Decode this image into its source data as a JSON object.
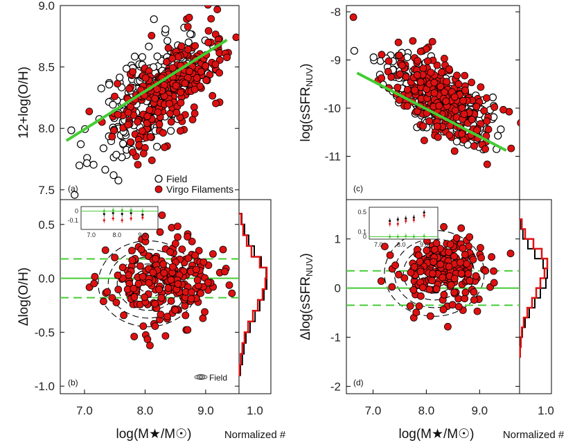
{
  "chart_data": [
    {
      "id": "a",
      "type": "scatter",
      "panel_label": "(a)",
      "ylabel": "12+log(O/H)",
      "xlim": [
        6.6,
        9.55
      ],
      "ylim": [
        7.42,
        9.0
      ],
      "yticks": [
        7.5,
        8.0,
        8.5,
        9.0
      ],
      "ytick_labels": [
        "7.5",
        "8.0",
        "8.5",
        "9.0"
      ],
      "fit_line": {
        "x": [
          6.7,
          9.35
        ],
        "y": [
          7.9,
          8.72
        ],
        "color": "#44cc33"
      },
      "legend": [
        {
          "label": "Field",
          "marker": "open-circle"
        },
        {
          "label": "Virgo Filaments",
          "marker": "red-circle"
        }
      ],
      "series": [
        {
          "name": "Field",
          "n_points": 220,
          "x_mean": 8.05,
          "x_sd": 0.45,
          "y_mean": 8.28,
          "y_sd": 0.28
        },
        {
          "name": "Virgo Filaments",
          "n_points": 300,
          "x_mean": 8.35,
          "x_sd": 0.45,
          "y_mean": 8.32,
          "y_sd": 0.25
        }
      ]
    },
    {
      "id": "b",
      "type": "scatter",
      "panel_label": "(b)",
      "xlabel": "log(M★/M☉)",
      "ylabel": "Δlog(O/H)",
      "xlim": [
        6.6,
        9.55
      ],
      "ylim": [
        -1.07,
        0.73
      ],
      "xticks": [
        7.0,
        8.0,
        9.0
      ],
      "xtick_labels": [
        "7.0",
        "8.0",
        "9.0"
      ],
      "yticks": [
        -1.0,
        -0.5,
        0.0,
        0.5
      ],
      "ytick_labels": [
        "-1.0",
        "-0.5",
        "0.0",
        "0.5"
      ],
      "hlines": [
        {
          "y": 0.0,
          "style": "solid"
        },
        {
          "y": 0.18,
          "style": "dashed"
        },
        {
          "y": -0.18,
          "style": "dashed"
        }
      ],
      "contour_legend": "Field",
      "series": [
        {
          "name": "Virgo Filaments",
          "n_points": 230,
          "x_mean": 8.3,
          "x_sd": 0.45,
          "y_mean": -0.03,
          "y_sd": 0.2
        }
      ],
      "inset": {
        "xticks": [
          7.0,
          8.0,
          9.0
        ],
        "xtick_labels": [
          "7.0",
          "8.0",
          "9.0"
        ],
        "yticks": [
          0,
          -0.1
        ],
        "ytick_labels": [
          "0",
          "-0.1"
        ],
        "ylim": [
          -0.2,
          0.05
        ],
        "bins_x": [
          7.5,
          7.85,
          8.2,
          8.55,
          9.0
        ],
        "field": [
          -0.03,
          -0.02,
          -0.03,
          -0.02,
          -0.04
        ],
        "virgo": [
          -0.1,
          -0.08,
          -0.1,
          -0.08,
          -0.07
        ],
        "green": [
          0.0,
          0.01,
          0.01,
          0.01,
          0.0
        ]
      }
    },
    {
      "id": "b_hist",
      "type": "histogram",
      "xlabel": "Normalized #",
      "xtick_labels": [
        "1.0"
      ],
      "orientation": "horizontal",
      "ylim": [
        -1.07,
        0.73
      ],
      "bin_edges": [
        -0.9,
        -0.8,
        -0.7,
        -0.6,
        -0.5,
        -0.4,
        -0.3,
        -0.2,
        -0.1,
        0.0,
        0.1,
        0.2,
        0.3,
        0.4,
        0.5,
        0.6
      ],
      "series": [
        {
          "name": "Field",
          "color": "#000000",
          "values": [
            0.05,
            0.12,
            0.18,
            0.25,
            0.4,
            0.58,
            0.75,
            0.9,
            1.0,
            0.98,
            0.8,
            0.55,
            0.35,
            0.2,
            0.1
          ]
        },
        {
          "name": "Virgo Filaments",
          "color": "#dd1111",
          "values": [
            0.02,
            0.06,
            0.12,
            0.2,
            0.33,
            0.5,
            0.68,
            0.85,
            0.95,
            1.0,
            0.75,
            0.45,
            0.28,
            0.15,
            0.08
          ]
        }
      ]
    },
    {
      "id": "c",
      "type": "scatter",
      "panel_label": "(c)",
      "ylabel": "log(sSFR",
      "ylabel_sub": "NUV",
      "ylabel_end": ")",
      "xlim": [
        6.5,
        9.75
      ],
      "ylim": [
        -11.9,
        -7.87
      ],
      "yticks": [
        -11,
        -10,
        -9,
        -8
      ],
      "ytick_labels": [
        "-11",
        "-10",
        "-9",
        "-8"
      ],
      "fit_line": {
        "x": [
          6.7,
          9.5
        ],
        "y": [
          -9.27,
          -10.88
        ],
        "color": "#44cc33"
      },
      "series": [
        {
          "name": "Field",
          "n_points": 230,
          "x_mean": 8.2,
          "x_sd": 0.5,
          "y_mean": -9.8,
          "y_sd": 0.45
        },
        {
          "name": "Virgo Filaments",
          "n_points": 300,
          "x_mean": 8.3,
          "x_sd": 0.5,
          "y_mean": -9.85,
          "y_sd": 0.5
        }
      ]
    },
    {
      "id": "d",
      "type": "scatter",
      "panel_label": "(d)",
      "xlabel": "log(M★/M☉)",
      "ylabel": "Δlog(sSFR",
      "ylabel_sub": "NUV",
      "ylabel_end": ")",
      "xlim": [
        6.5,
        9.75
      ],
      "ylim": [
        -2.15,
        1.8
      ],
      "xticks": [
        7.0,
        8.0,
        9.0
      ],
      "xtick_labels": [
        "7.0",
        "8.0",
        "9.0"
      ],
      "yticks": [
        -2,
        -1,
        0,
        1
      ],
      "ytick_labels": [
        "-2",
        "-1",
        "0",
        "1"
      ],
      "hlines": [
        {
          "y": 0.0,
          "style": "solid"
        },
        {
          "y": 0.35,
          "style": "dashed"
        },
        {
          "y": -0.35,
          "style": "dashed"
        }
      ],
      "series": [
        {
          "name": "Virgo Filaments",
          "n_points": 210,
          "x_mean": 8.35,
          "x_sd": 0.45,
          "y_mean": 0.35,
          "y_sd": 0.4
        }
      ],
      "inset": {
        "xticks": [
          7.0,
          8.0,
          9.0
        ],
        "xtick_labels": [
          "7.0",
          "8.0",
          "9.0"
        ],
        "yticks": [
          0,
          0.1,
          0.5
        ],
        "ytick_labels": [
          "0",
          "0.1",
          "0.5"
        ],
        "ylim": [
          -0.05,
          0.6
        ],
        "bins_x": [
          7.5,
          7.85,
          8.2,
          8.55,
          9.0
        ],
        "field": [
          0.32,
          0.35,
          0.37,
          0.39,
          0.49
        ],
        "virgo": [
          0.26,
          0.26,
          0.32,
          0.34,
          0.43
        ],
        "green": [
          0.0,
          0.0,
          0.01,
          0.0,
          0.01
        ]
      }
    },
    {
      "id": "d_hist",
      "type": "histogram",
      "xlabel": "Normalized #",
      "xtick_labels": [
        "1.0"
      ],
      "orientation": "horizontal",
      "ylim": [
        -2.15,
        1.8
      ],
      "bin_edges": [
        -1.4,
        -1.2,
        -1.0,
        -0.8,
        -0.6,
        -0.4,
        -0.2,
        0.0,
        0.2,
        0.4,
        0.6,
        0.8,
        1.0,
        1.2,
        1.4
      ],
      "series": [
        {
          "name": "Field",
          "color": "#000000",
          "values": [
            0.02,
            0.05,
            0.1,
            0.2,
            0.35,
            0.55,
            0.75,
            0.95,
            1.0,
            0.85,
            0.55,
            0.3,
            0.12,
            0.05
          ]
        },
        {
          "name": "Virgo Filaments",
          "color": "#dd1111",
          "values": [
            0.02,
            0.04,
            0.08,
            0.15,
            0.28,
            0.45,
            0.6,
            0.75,
            0.9,
            1.0,
            0.8,
            0.5,
            0.2,
            0.08
          ]
        }
      ]
    }
  ]
}
